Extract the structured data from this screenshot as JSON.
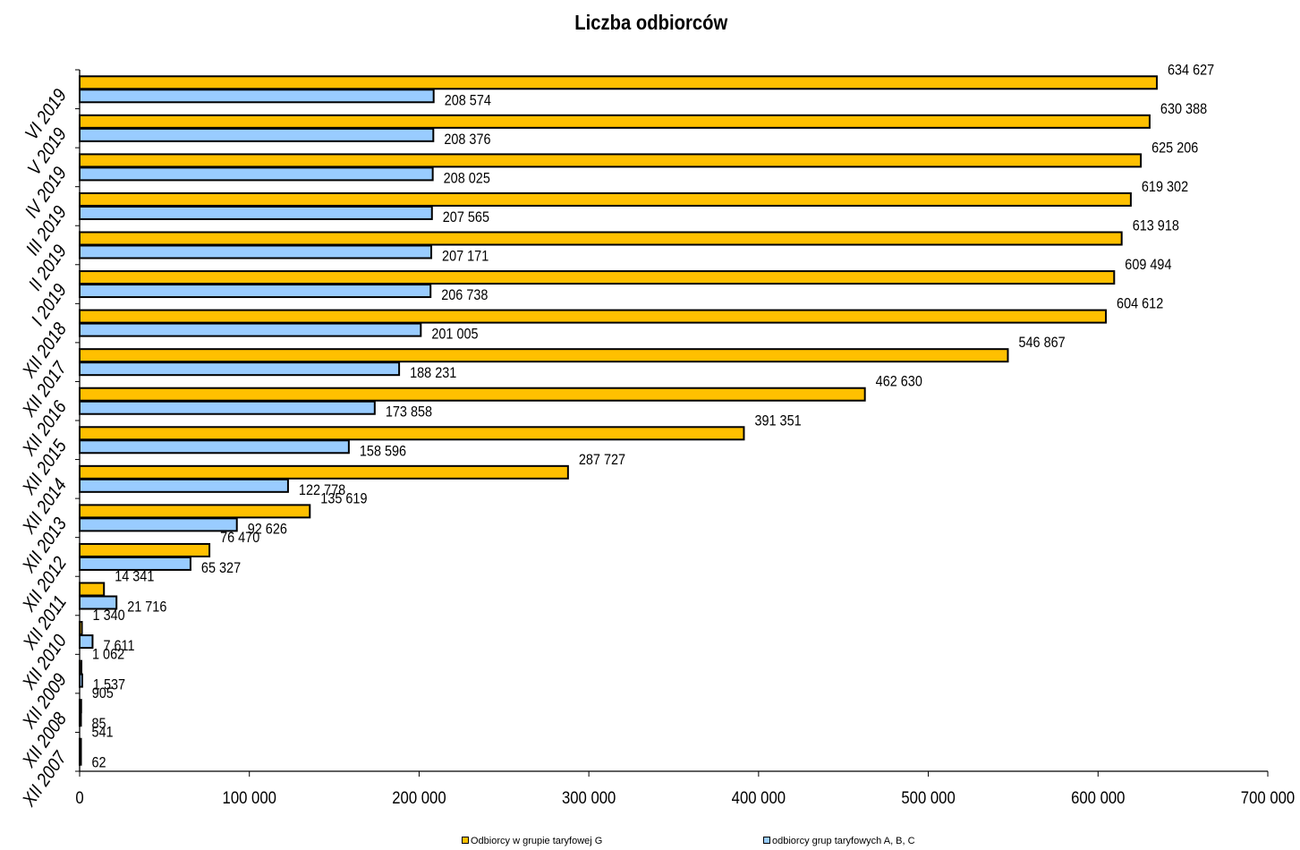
{
  "chart_data": {
    "type": "bar",
    "orientation": "horizontal",
    "title": "Liczba odbiorców",
    "xlabel": "",
    "ylabel": "",
    "xlim": [
      0,
      700000
    ],
    "x_ticks": [
      0,
      100000,
      200000,
      300000,
      400000,
      500000,
      600000,
      700000
    ],
    "x_tick_labels": [
      "0",
      "100 000",
      "200 000",
      "300 000",
      "400 000",
      "500 000",
      "600 000",
      "700 000"
    ],
    "grid": false,
    "legend_position": "bottom",
    "categories": [
      "VI 2019",
      "V 2019",
      "IV 2019",
      "III 2019",
      "II 2019",
      "I 2019",
      "XII 2018",
      "XII 2017",
      "XII 2016",
      "XII 2015",
      "XII 2014",
      "XII 2013",
      "XII 2012",
      "XII 2011",
      "XII 2010",
      "XII 2009",
      "XII 2008",
      "XII 2007"
    ],
    "series": [
      {
        "name": "Odbiorcy w grupie taryfowej G",
        "color": "#FFC000",
        "values": [
          634627,
          630388,
          625206,
          619302,
          613918,
          609494,
          604612,
          546867,
          462630,
          391351,
          287727,
          135619,
          76470,
          14341,
          1340,
          1062,
          905,
          541
        ],
        "labels": [
          "634 627",
          "630 388",
          "625 206",
          "619 302",
          "613 918",
          "609 494",
          "604 612",
          "546 867",
          "462 630",
          "391 351",
          "287 727",
          "135 619",
          "76 470",
          "14 341",
          "1 340",
          "1 062",
          "905",
          "541"
        ]
      },
      {
        "name": "odbiorcy grup taryfowych A, B, C",
        "color": "#99CCFF",
        "values": [
          208574,
          208376,
          208025,
          207565,
          207171,
          206738,
          201005,
          188231,
          173858,
          158596,
          122778,
          92626,
          65327,
          21716,
          7611,
          1537,
          85,
          62
        ],
        "labels": [
          "208 574",
          "208 376",
          "208 025",
          "207 565",
          "207 171",
          "206 738",
          "201 005",
          "188 231",
          "173 858",
          "158 596",
          "122 778",
          "92 626",
          "65 327",
          "21 716",
          "7 611",
          "1 537",
          "85",
          "62"
        ]
      }
    ]
  }
}
